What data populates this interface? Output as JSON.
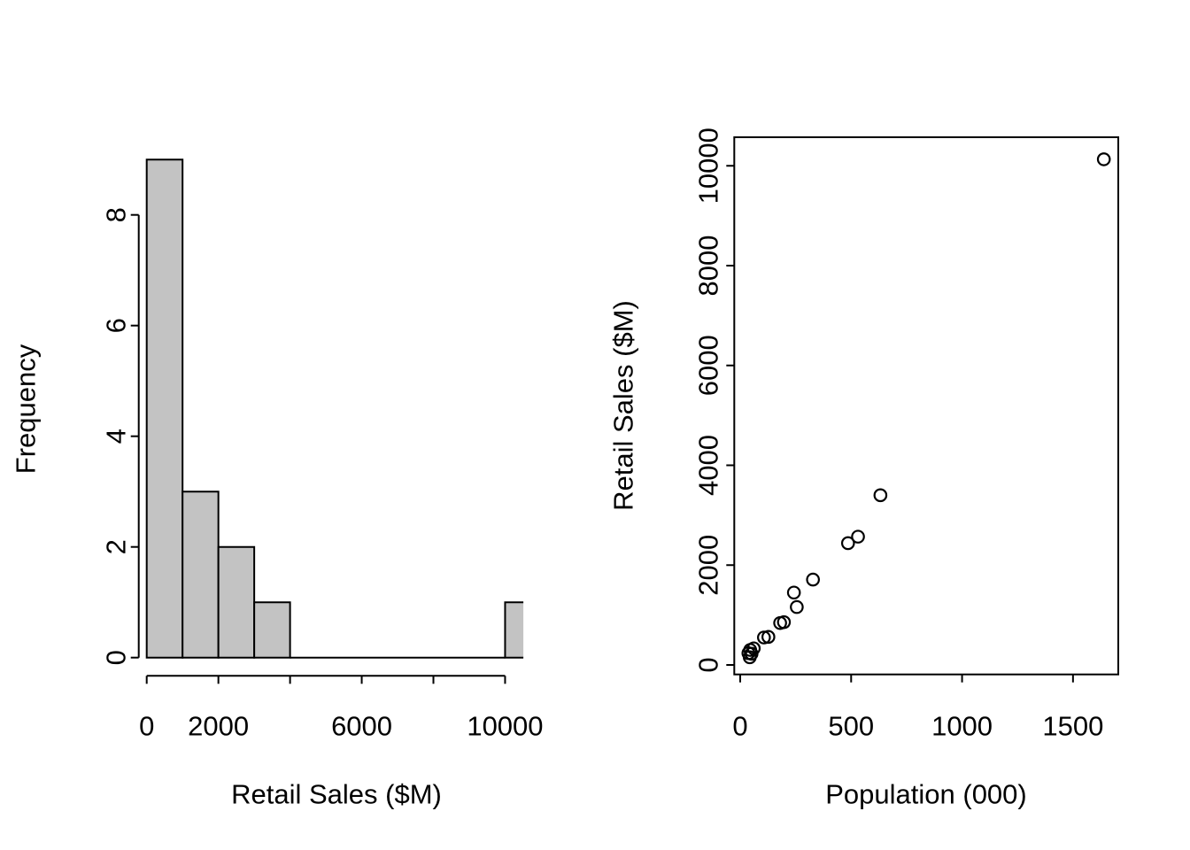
{
  "figure": {
    "background": "#ffffff",
    "foreground": "#000000"
  },
  "chart_data": [
    {
      "type": "bar",
      "subtype": "histogram",
      "title": "",
      "xlabel": "Retail Sales ($M)",
      "ylabel": "Frequency",
      "bin_start": 0,
      "bin_width": 1000,
      "counts": [
        9,
        3,
        2,
        1,
        0,
        0,
        0,
        0,
        0,
        0,
        1
      ],
      "x_ticks": [
        0,
        2000,
        4000,
        6000,
        8000,
        10000
      ],
      "x_tick_labels": [
        "0",
        "2000",
        "",
        "6000",
        "",
        "10000"
      ],
      "y_ticks": [
        0,
        2,
        4,
        6,
        8
      ],
      "y_tick_labels": [
        "0",
        "2",
        "4",
        "6",
        "8"
      ],
      "xlim": [
        0,
        10510
      ],
      "ylim": [
        0,
        9
      ],
      "bar_fill": "#c3c3c3",
      "bar_stroke": "#000000",
      "grid": false,
      "legend": false
    },
    {
      "type": "scatter",
      "title": "",
      "xlabel": "Population (000)",
      "ylabel": "Retail Sales ($M)",
      "marker": "open-circle",
      "marker_color": "#000000",
      "points": [
        {
          "x": 37,
          "y": 236
        },
        {
          "x": 43,
          "y": 154
        },
        {
          "x": 45,
          "y": 301
        },
        {
          "x": 51,
          "y": 225
        },
        {
          "x": 61,
          "y": 332
        },
        {
          "x": 107,
          "y": 550
        },
        {
          "x": 127,
          "y": 562
        },
        {
          "x": 180,
          "y": 840
        },
        {
          "x": 197,
          "y": 857
        },
        {
          "x": 242,
          "y": 1450
        },
        {
          "x": 255,
          "y": 1160
        },
        {
          "x": 328,
          "y": 1710
        },
        {
          "x": 486,
          "y": 2440
        },
        {
          "x": 531,
          "y": 2570
        },
        {
          "x": 632,
          "y": 3400
        },
        {
          "x": 1639,
          "y": 10130
        }
      ],
      "x_ticks": [
        0,
        500,
        1000,
        1500
      ],
      "x_tick_labels": [
        "0",
        "500",
        "1000",
        "1500"
      ],
      "y_ticks": [
        0,
        2000,
        4000,
        6000,
        8000,
        10000
      ],
      "y_tick_labels": [
        "0",
        "2000",
        "4000",
        "6000",
        "8000",
        "10000"
      ],
      "xlim": [
        -27,
        1707
      ],
      "ylim": [
        -190,
        10590
      ],
      "grid": false,
      "legend": false
    }
  ]
}
